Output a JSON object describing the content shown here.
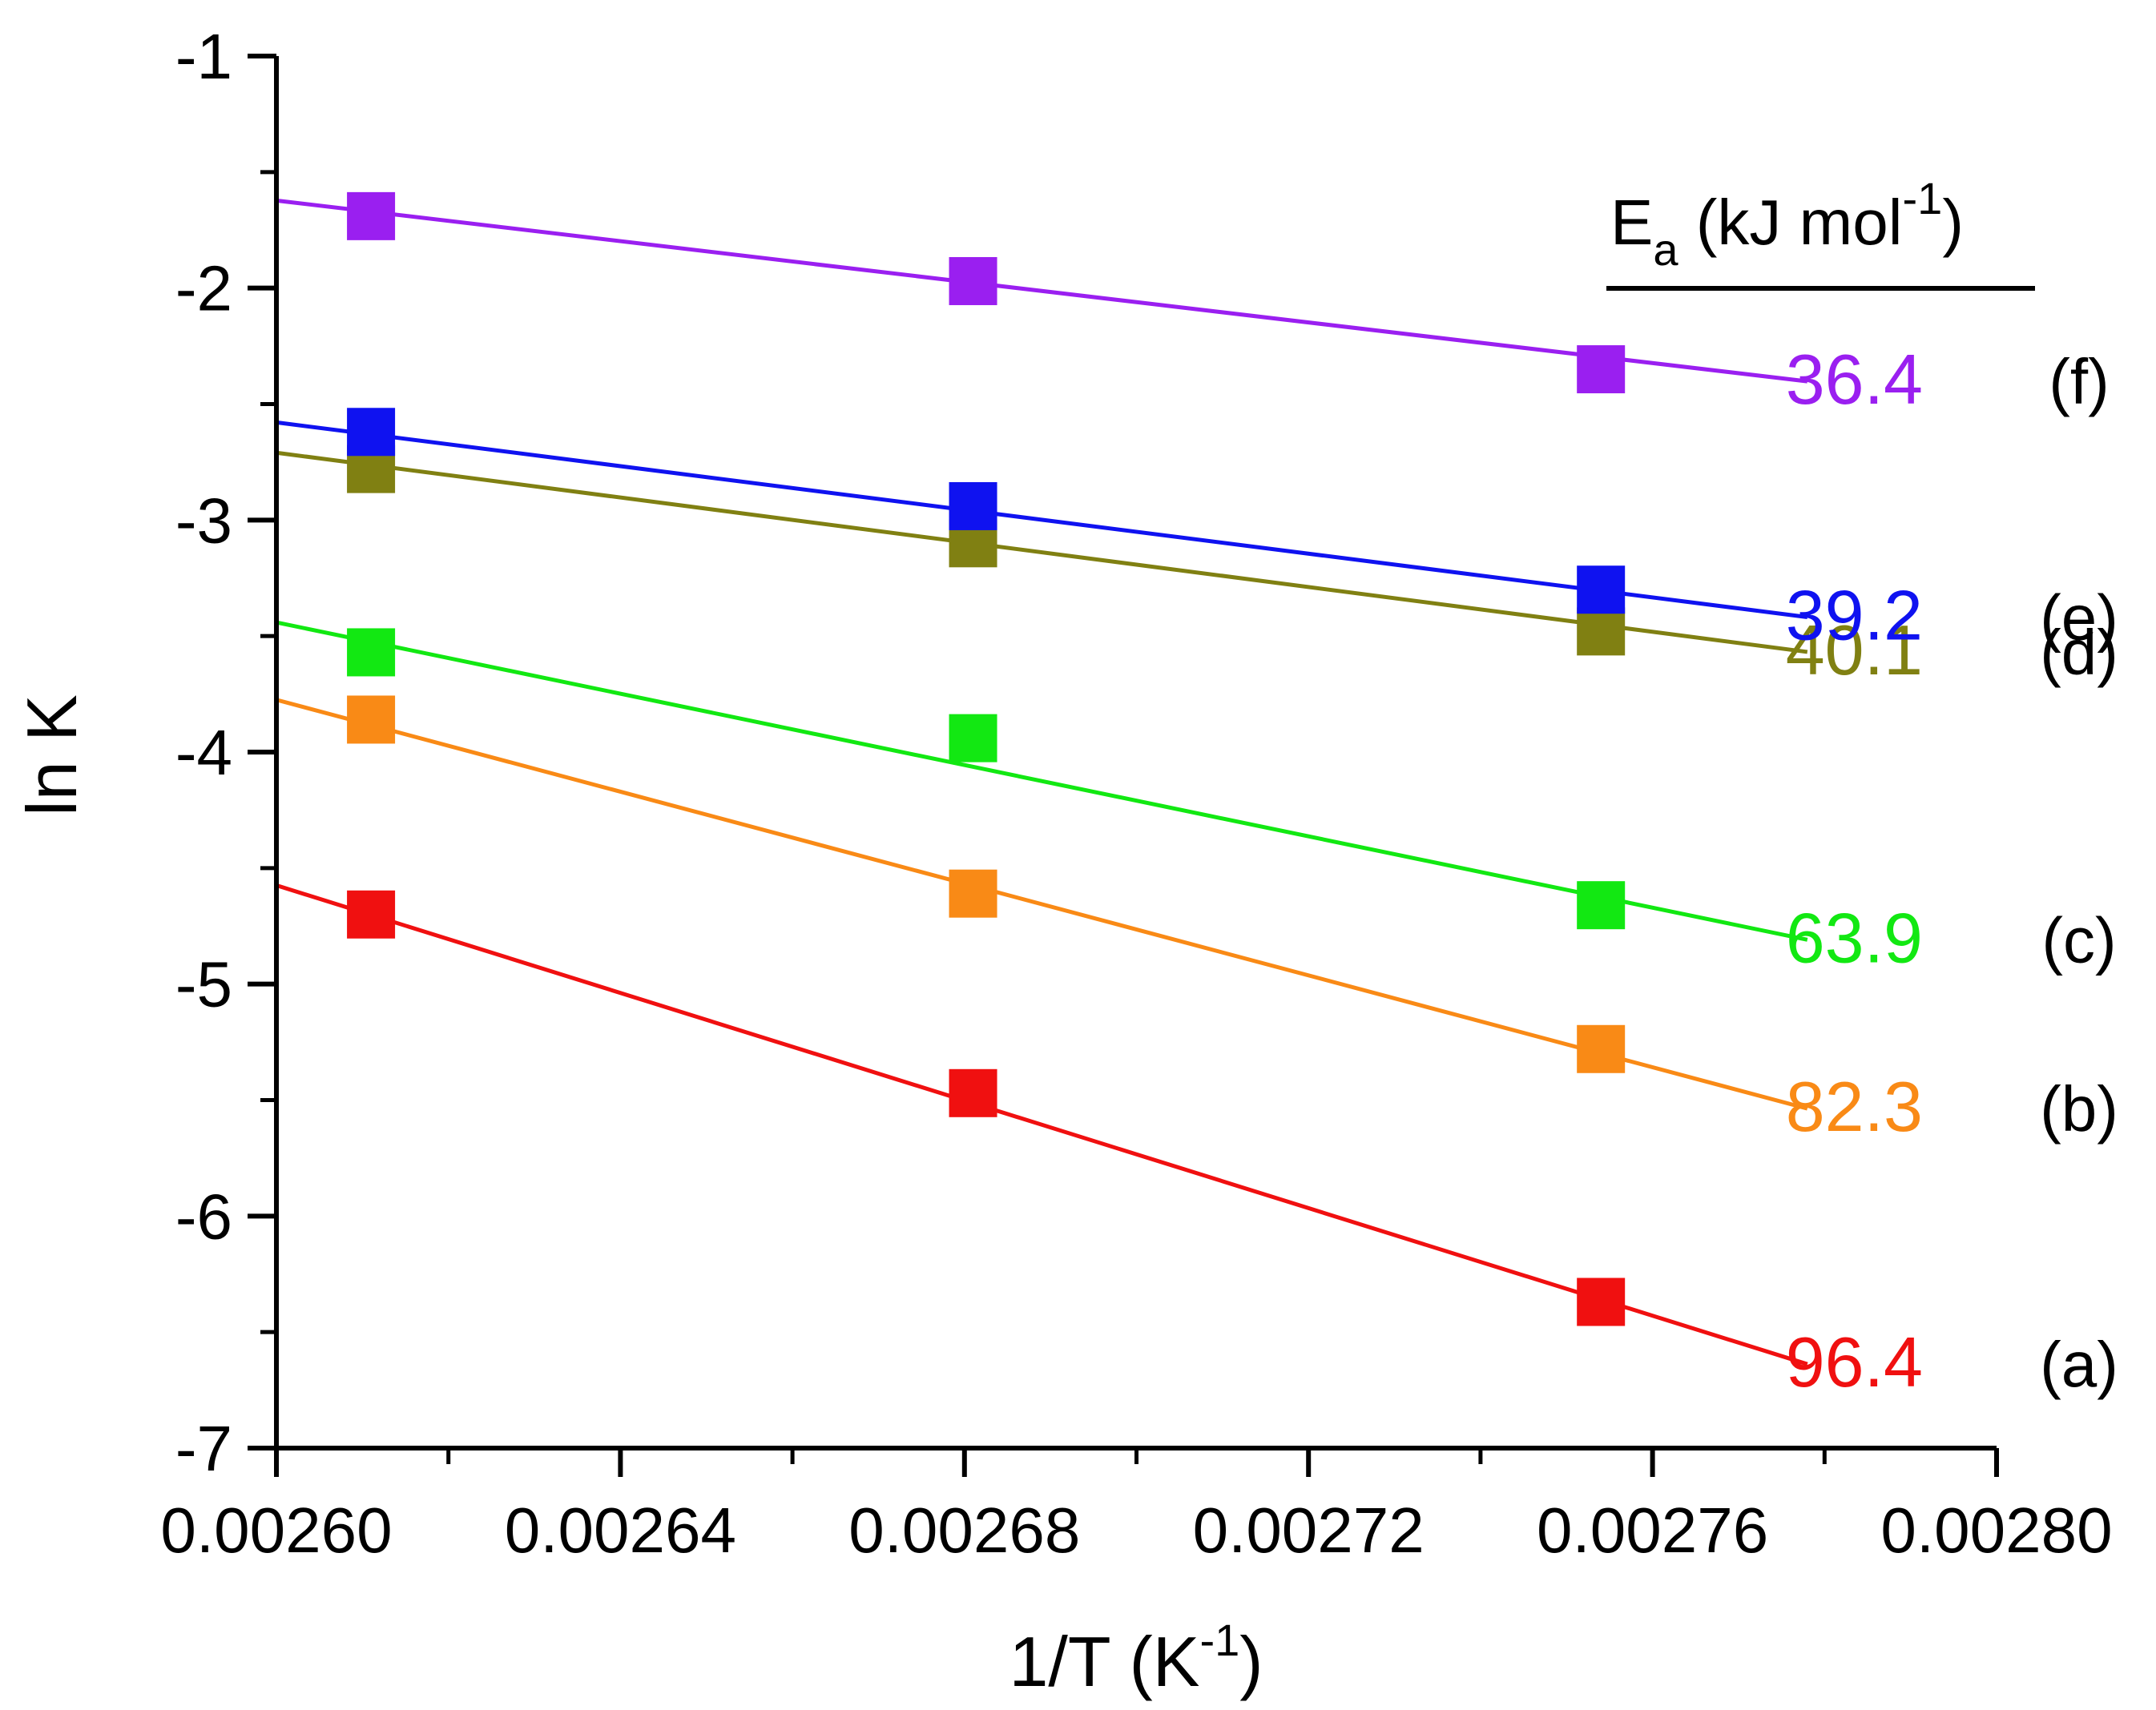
{
  "chart_data": {
    "type": "scatter",
    "title": "",
    "xlabel": {
      "base": "1/T (K",
      "sup": "-1",
      "tail": ")"
    },
    "ylabel": "ln K",
    "xlim": [
      0.0026,
      0.0028
    ],
    "ylim": [
      -7,
      -1
    ],
    "x_ticks": [
      0.0026,
      0.00264,
      0.00268,
      0.00272,
      0.00276,
      0.0028
    ],
    "x_tick_labels": [
      "0.00260",
      "0.00264",
      "0.00268",
      "0.00272",
      "0.00276",
      "0.00280"
    ],
    "y_ticks": [
      -7,
      -6,
      -5,
      -4,
      -3,
      -2,
      -1
    ],
    "y_tick_labels": [
      "-7",
      "-6",
      "-5",
      "-4",
      "-3",
      "-2",
      "-1"
    ],
    "grid": false,
    "legend": {
      "header": {
        "base": "E",
        "sub": "a",
        "unit": " (kJ mol",
        "sup": "-1",
        "tail": ")"
      },
      "placement": "right"
    },
    "series": [
      {
        "name": "(a)",
        "ea": "96.4",
        "color": "#f01010",
        "x": [
          0.002611,
          0.002681,
          0.002754
        ],
        "y": [
          -4.7,
          -5.47,
          -6.37
        ],
        "fit": {
          "slope": -11594,
          "intercept": 25.57,
          "x_range": [
            0.0026,
            0.002778
          ]
        }
      },
      {
        "name": "(b)",
        "ea": "82.3",
        "color": "#f98a16",
        "x": [
          0.002611,
          0.002681,
          0.002754
        ],
        "y": [
          -3.86,
          -4.61,
          -5.28
        ],
        "fit": {
          "slope": -9898,
          "intercept": 21.96,
          "x_range": [
            0.0026,
            0.002778
          ]
        }
      },
      {
        "name": "(c)",
        "ea": "63.9",
        "color": "#12e812",
        "x": [
          0.002611,
          0.002681,
          0.002754
        ],
        "y": [
          -3.57,
          -3.94,
          -4.66
        ],
        "fit": {
          "slope": -7685,
          "intercept": 16.54,
          "x_range": [
            0.0026,
            0.002778
          ]
        }
      },
      {
        "name": "(d)",
        "ea": "40.1",
        "color": "#808012",
        "x": [
          0.002611,
          0.002681,
          0.002754
        ],
        "y": [
          -2.78,
          -3.1,
          -3.48
        ],
        "fit": {
          "slope": -4823,
          "intercept": 9.83,
          "x_range": [
            0.0026,
            0.002778
          ]
        }
      },
      {
        "name": "(e)",
        "ea": "39.2",
        "color": "#0f12f0",
        "x": [
          0.002611,
          0.002681,
          0.002754
        ],
        "y": [
          -2.62,
          -2.94,
          -3.3
        ],
        "fit": {
          "slope": -4715,
          "intercept": 9.68,
          "x_range": [
            0.0026,
            0.002778
          ]
        }
      },
      {
        "name": "(f)",
        "ea": "36.4",
        "color": "#9a1ff0",
        "x": [
          0.002611,
          0.002681,
          0.002754
        ],
        "y": [
          -1.69,
          -1.97,
          -2.35
        ],
        "fit": {
          "slope": -4378,
          "intercept": 9.76,
          "x_range": [
            0.0026,
            0.002778
          ]
        }
      }
    ]
  }
}
